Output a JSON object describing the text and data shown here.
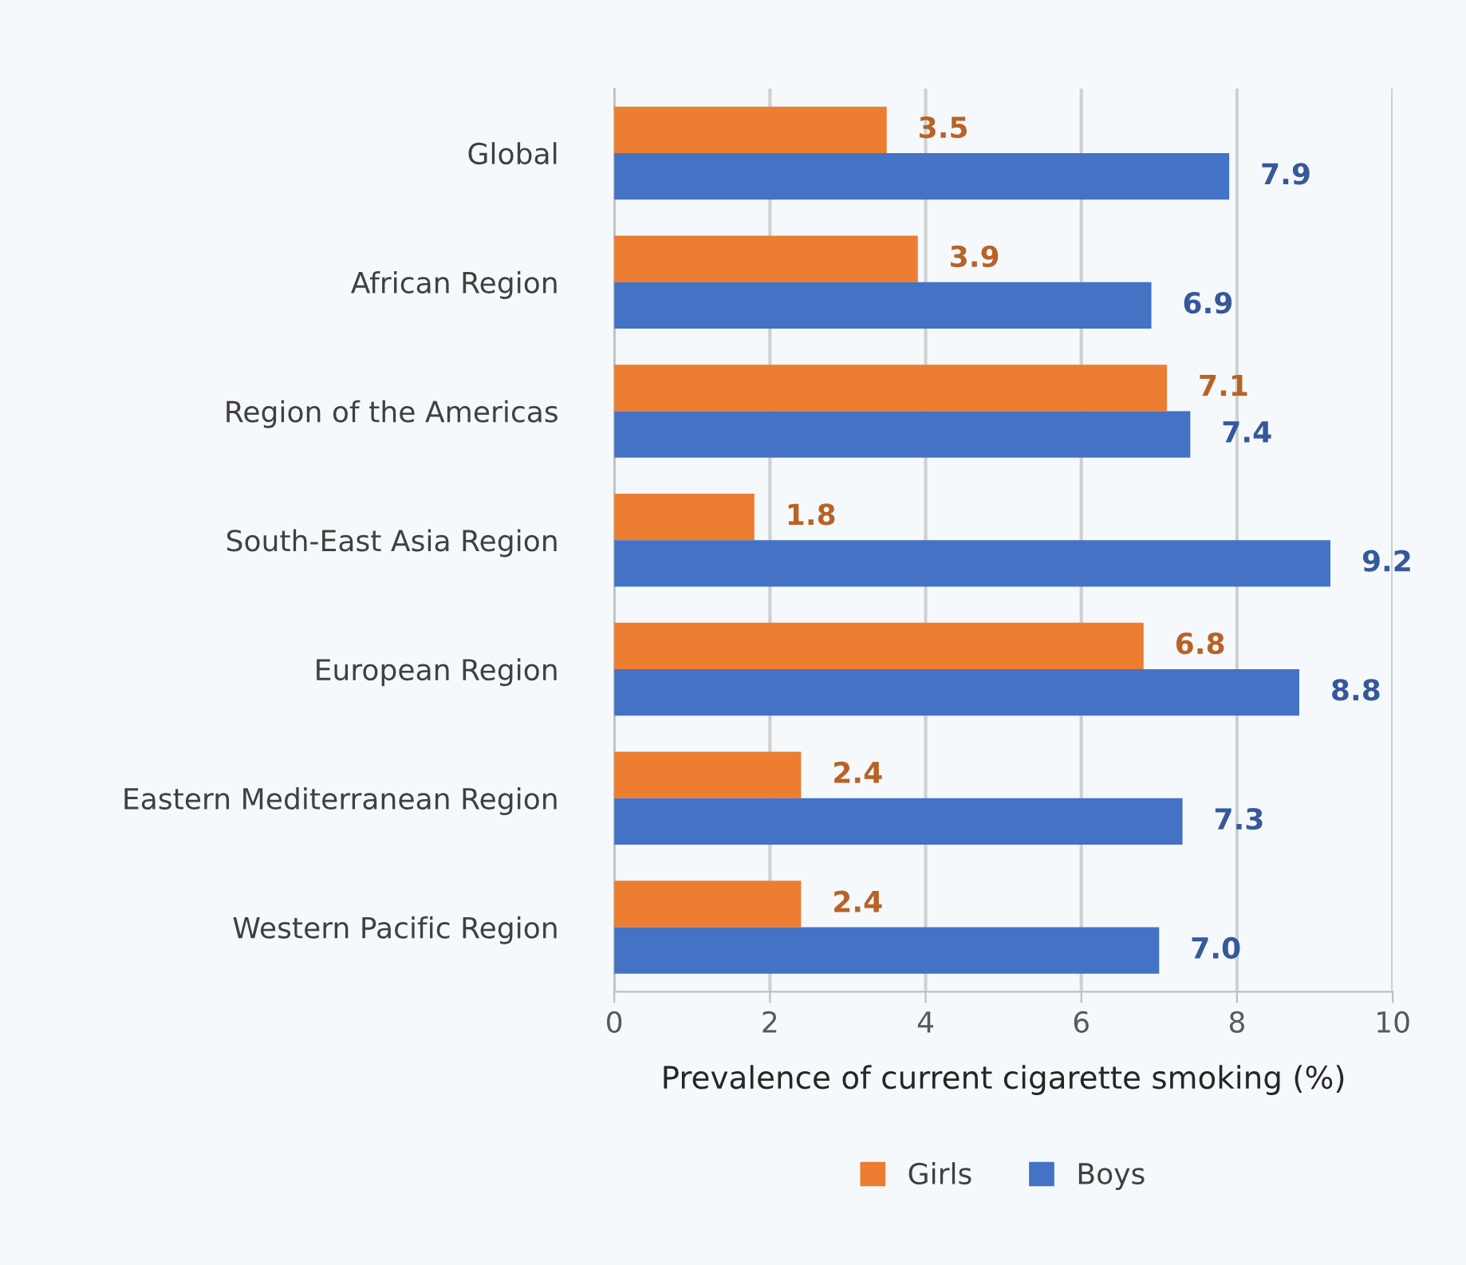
{
  "chart_data": {
    "type": "bar",
    "orientation": "horizontal",
    "xlabel": "Prevalence of current cigarette smoking (%)",
    "categories": [
      "Global",
      "African Region",
      "Region of the Americas",
      "South-East Asia Region",
      "European Region",
      "Eastern Mediterranean Region",
      "Western Pacific Region"
    ],
    "series": [
      {
        "name": "Girls",
        "color": "#ed7d31",
        "values": [
          3.5,
          3.9,
          7.1,
          1.8,
          6.8,
          2.4,
          2.4
        ],
        "value_labels": [
          "3.5",
          "3.9",
          "7.1",
          "1.8",
          "6.8",
          "2.4",
          "2.4"
        ]
      },
      {
        "name": "Boys",
        "color": "#4472c4",
        "values": [
          7.9,
          6.9,
          7.4,
          9.2,
          8.8,
          7.3,
          7.0
        ],
        "value_labels": [
          "7.9",
          "6.9",
          "7.4",
          "9.2",
          "8.8",
          "7.3",
          "7.0"
        ]
      }
    ],
    "xlim": [
      0,
      10
    ],
    "xticks": [
      0,
      2,
      4,
      6,
      8,
      10
    ],
    "grid": "x",
    "legend": "bottom"
  }
}
